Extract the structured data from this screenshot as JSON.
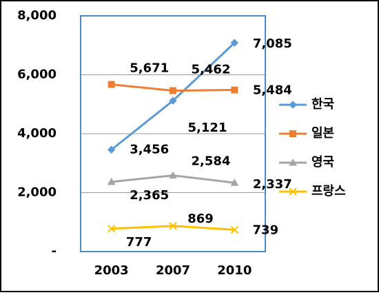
{
  "chart_data": {
    "type": "line",
    "categories": [
      "2003",
      "2007",
      "2010"
    ],
    "series": [
      {
        "name": "한국",
        "color": "#5b9bd5",
        "marker": "diamond",
        "values": [
          3456,
          5121,
          7085
        ],
        "value_labels": [
          "3,456",
          "5,121",
          "7,085"
        ]
      },
      {
        "name": "일본",
        "color": "#ed7d31",
        "marker": "square",
        "values": [
          5671,
          5462,
          5484
        ],
        "value_labels": [
          "5,671",
          "5,462",
          "5,484"
        ]
      },
      {
        "name": "영국",
        "color": "#a5a5a5",
        "marker": "triangle",
        "values": [
          2365,
          2584,
          2337
        ],
        "value_labels": [
          "2,365",
          "2,584",
          "2,337"
        ]
      },
      {
        "name": "프랑스",
        "color": "#ffc000",
        "marker": "x",
        "values": [
          777,
          869,
          739
        ]
      }
    ],
    "ylim": [
      0,
      8000
    ],
    "yticks": [
      {
        "value": 0,
        "label": "-"
      },
      {
        "value": 2000,
        "label": "2,000"
      },
      {
        "value": 4000,
        "label": "4,000"
      },
      {
        "value": 6000,
        "label": "6,000"
      },
      {
        "value": 8000,
        "label": "8,000"
      }
    ],
    "grid": true
  }
}
